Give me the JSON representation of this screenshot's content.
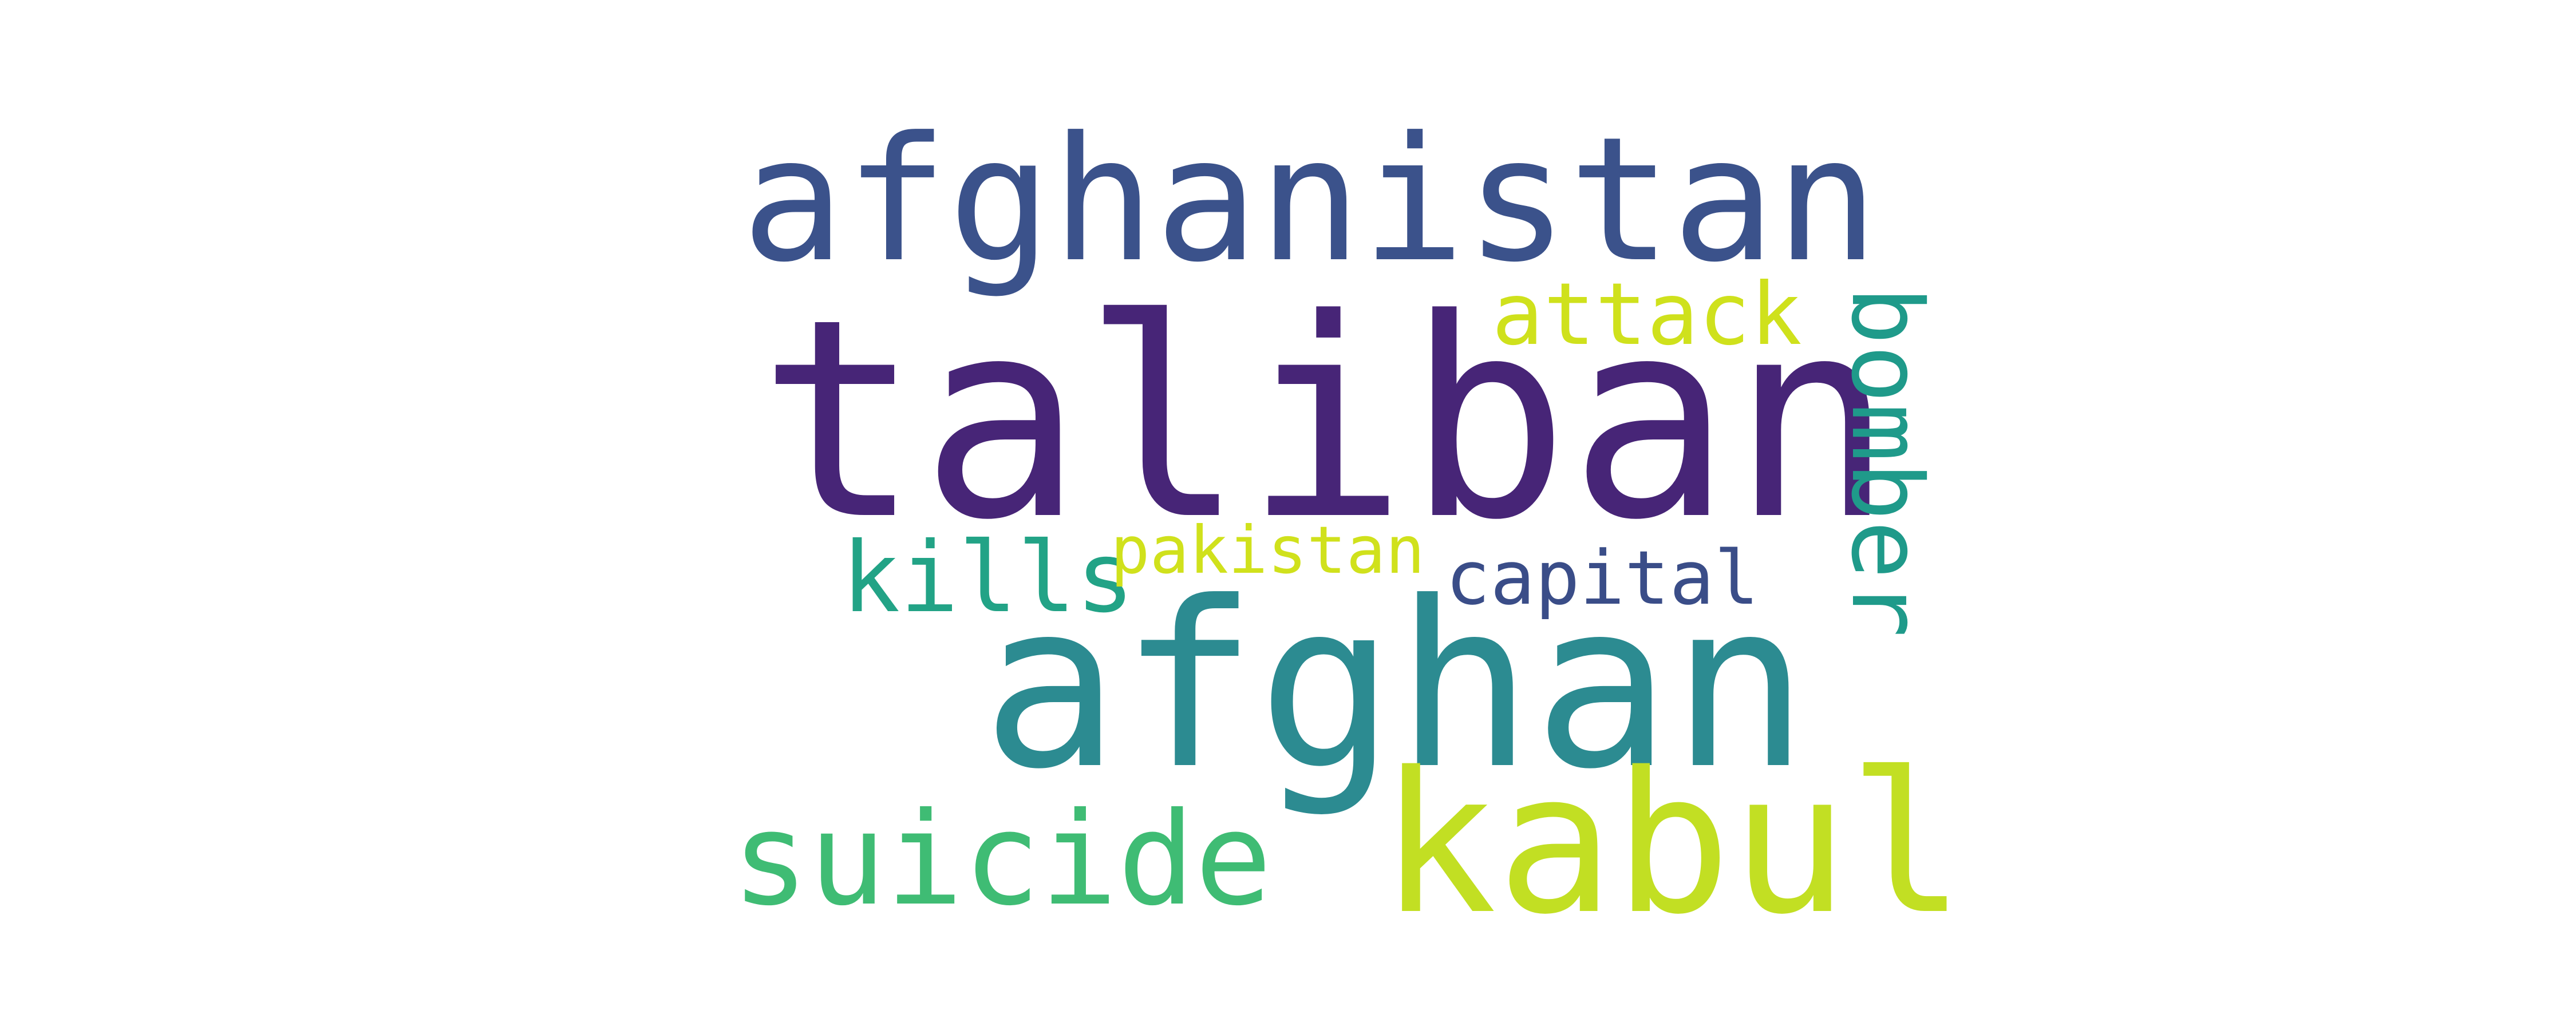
{
  "word_cloud": {
    "words": [
      {
        "text": "taliban",
        "color": "#472577"
      },
      {
        "text": "afghanistan",
        "color": "#3b528b"
      },
      {
        "text": "afghan",
        "color": "#2c8b91"
      },
      {
        "text": "kabul",
        "color": "#c2df23"
      },
      {
        "text": "suicide",
        "color": "#3fbc74"
      },
      {
        "text": "bomber",
        "color": "#1f9a8a"
      },
      {
        "text": "attack",
        "color": "#cfe11c"
      },
      {
        "text": "pakistan",
        "color": "#d0e11c"
      },
      {
        "text": "capital",
        "color": "#3a4d88"
      },
      {
        "text": "kills",
        "color": "#22a386"
      }
    ]
  }
}
